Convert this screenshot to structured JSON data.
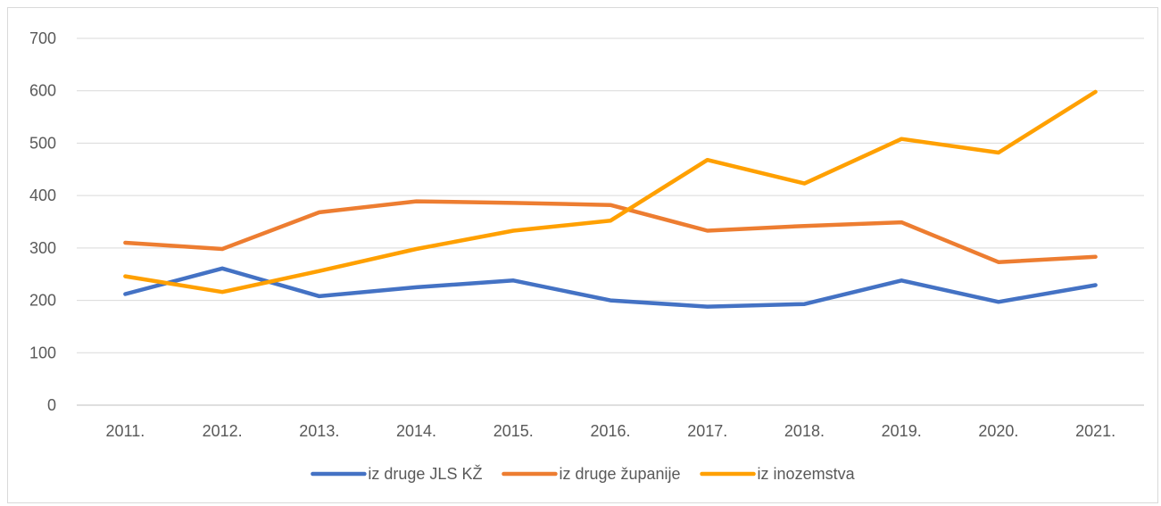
{
  "chart_data": {
    "type": "line",
    "title": "",
    "xlabel": "",
    "ylabel": "",
    "categories": [
      "2011.",
      "2012.",
      "2013.",
      "2014.",
      "2015.",
      "2016.",
      "2017.",
      "2018.",
      "2019.",
      "2020.",
      "2021."
    ],
    "ylim": [
      0,
      700
    ],
    "yticks": [
      "0",
      "100",
      "200",
      "300",
      "400",
      "500",
      "600",
      "700"
    ],
    "grid": true,
    "legend_position": "bottom",
    "series": [
      {
        "name": "iz druge JLS KŽ",
        "color": "#4472c4",
        "values": [
          212,
          261,
          208,
          225,
          238,
          200,
          188,
          193,
          238,
          197,
          229
        ]
      },
      {
        "name": "iz druge županije",
        "color": "#ed7d31",
        "values": [
          310,
          298,
          368,
          389,
          386,
          382,
          333,
          342,
          349,
          273,
          283
        ]
      },
      {
        "name": "iz inozemstva",
        "color": "#ffa000",
        "values": [
          246,
          216,
          256,
          298,
          333,
          352,
          468,
          423,
          508,
          482,
          598
        ]
      }
    ]
  }
}
